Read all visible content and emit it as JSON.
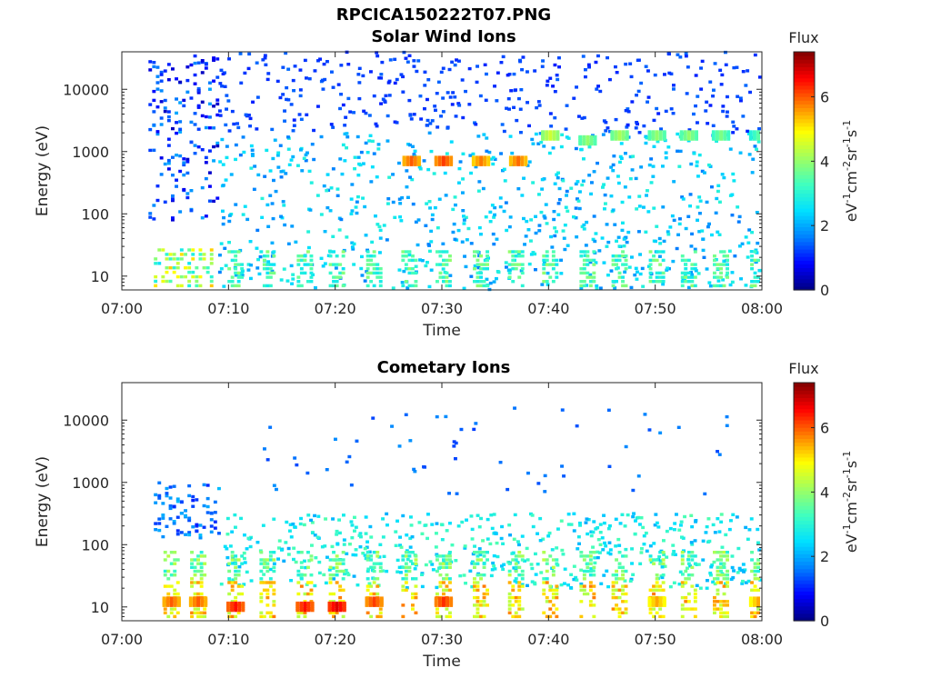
{
  "figure": {
    "title": "RPCICA150222T07.PNG"
  },
  "colorscale": [
    "#00007f",
    "#0000ff",
    "#0080ff",
    "#00e0ff",
    "#40ffbf",
    "#a0ff60",
    "#ffff00",
    "#ff8000",
    "#ff0000",
    "#7f0000"
  ],
  "chart_data": [
    {
      "type": "heatmap",
      "title": "Solar Wind Ions",
      "xlabel": "Time",
      "ylabel": "Energy (eV)",
      "x_range": [
        "07:00",
        "08:00"
      ],
      "x_ticks": [
        "07:00",
        "07:10",
        "07:20",
        "07:30",
        "07:40",
        "07:50",
        "08:00"
      ],
      "y_scale": "log",
      "y_range": [
        6,
        40000
      ],
      "y_ticks": [
        10,
        100,
        1000,
        10000
      ],
      "y_tick_labels": [
        "10",
        "100",
        "1000",
        "10000"
      ],
      "colorbar": {
        "title": "Flux",
        "label": "eV-1cm-2sr-1s-1",
        "range": [
          0,
          7.4
        ],
        "ticks": [
          0,
          2,
          4,
          6
        ],
        "tick_labels": [
          "0",
          "2",
          "4",
          "6"
        ]
      },
      "features": [
        {
          "minute": 27.0,
          "energy_ev": 700,
          "flux": 6.0
        },
        {
          "minute": 30.0,
          "energy_ev": 700,
          "flux": 6.2
        },
        {
          "minute": 33.5,
          "energy_ev": 700,
          "flux": 5.8
        },
        {
          "minute": 37.0,
          "energy_ev": 700,
          "flux": 5.9
        },
        {
          "minute": 40.0,
          "energy_ev": 1800,
          "flux": 4.5
        },
        {
          "minute": 43.5,
          "energy_ev": 1500,
          "flux": 4.0
        },
        {
          "minute": 46.5,
          "energy_ev": 1800,
          "flux": 4.2
        },
        {
          "minute": 50.0,
          "energy_ev": 1800,
          "flux": 4.0
        },
        {
          "minute": 53.0,
          "energy_ev": 1800,
          "flux": 4.0
        },
        {
          "minute": 56.0,
          "energy_ev": 1800,
          "flux": 3.8
        },
        {
          "minute": 59.5,
          "energy_ev": 1800,
          "flux": 3.5
        }
      ]
    },
    {
      "type": "heatmap",
      "title": "Cometary Ions",
      "xlabel": "Time",
      "ylabel": "Energy (eV)",
      "x_range": [
        "07:00",
        "08:00"
      ],
      "x_ticks": [
        "07:00",
        "07:10",
        "07:20",
        "07:30",
        "07:40",
        "07:50",
        "08:00"
      ],
      "y_scale": "log",
      "y_range": [
        6,
        40000
      ],
      "y_ticks": [
        10,
        100,
        1000,
        10000
      ],
      "y_tick_labels": [
        "10",
        "100",
        "1000",
        "10000"
      ],
      "colorbar": {
        "title": "Flux",
        "label": "eV-1cm-2sr-1s-1",
        "range": [
          0,
          7.4
        ],
        "ticks": [
          0,
          2,
          4,
          6
        ],
        "tick_labels": [
          "0",
          "2",
          "4",
          "6"
        ]
      },
      "features": [
        {
          "minute": 4.5,
          "energy_ev": 12,
          "flux": 6.0
        },
        {
          "minute": 7.0,
          "energy_ev": 12,
          "flux": 6.0
        },
        {
          "minute": 10.5,
          "energy_ev": 10,
          "flux": 6.5
        },
        {
          "minute": 17.0,
          "energy_ev": 10,
          "flux": 6.5
        },
        {
          "minute": 20.0,
          "energy_ev": 10,
          "flux": 6.8
        },
        {
          "minute": 23.5,
          "energy_ev": 12,
          "flux": 6.2
        },
        {
          "minute": 30.0,
          "energy_ev": 12,
          "flux": 6.3
        },
        {
          "minute": 50.0,
          "energy_ev": 12,
          "flux": 5.5
        },
        {
          "minute": 59.5,
          "energy_ev": 12,
          "flux": 5.5
        }
      ]
    }
  ]
}
